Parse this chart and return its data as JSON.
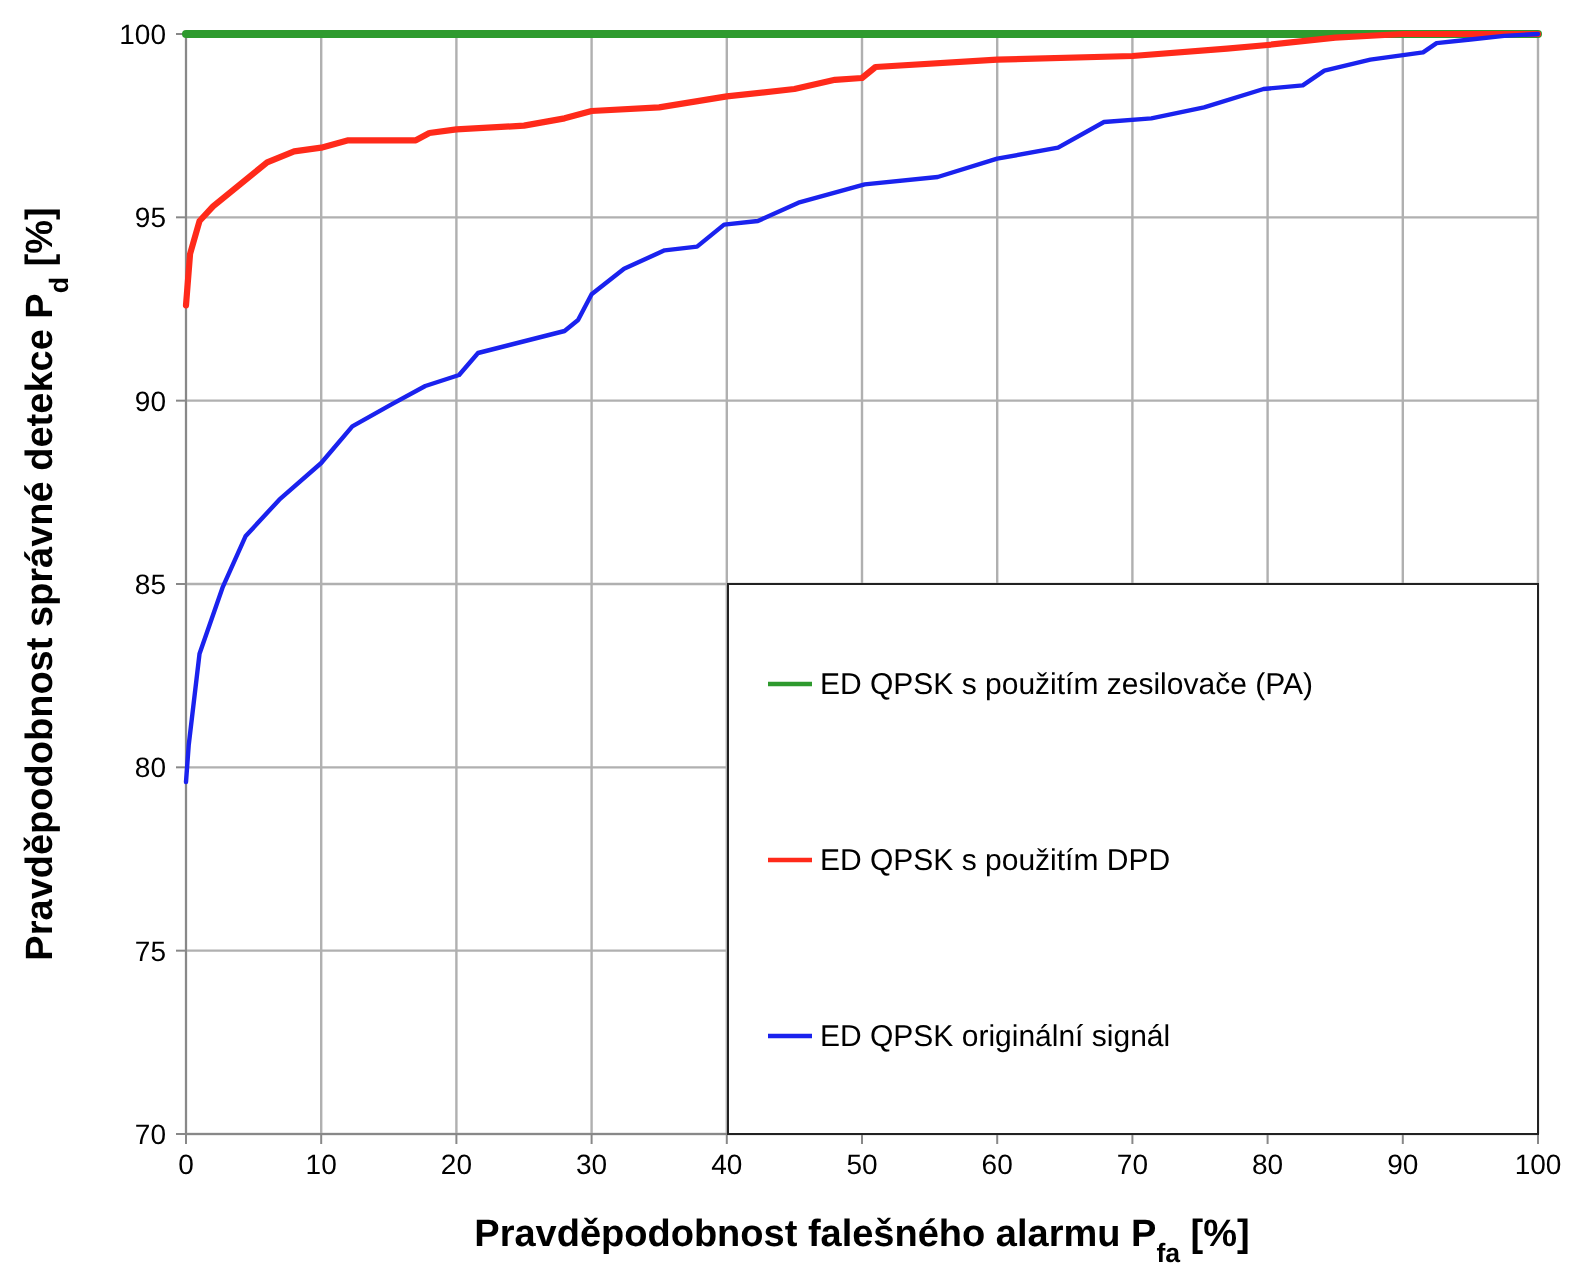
{
  "chart_data": {
    "type": "line",
    "xlabel": "Pravděpodobnost falešného alarmu P$_{fa}$ [%]",
    "ylabel": "Pravděpodobnost správné detekce P$_{d}$ [%]",
    "xlim": [
      0,
      100
    ],
    "xticks": [
      0,
      10,
      20,
      30,
      40,
      50,
      60,
      70,
      80,
      90,
      100
    ],
    "ylim": [
      70,
      100
    ],
    "yticks": [
      70,
      75,
      80,
      85,
      90,
      95,
      100
    ],
    "grid": true,
    "legend": "bottom right",
    "marker": "none",
    "line_style": "solid",
    "series": [
      {
        "name": "ED QPSK s použitím zesilovače (PA)",
        "color": "#2e9a2e",
        "x": [
          0,
          100
        ],
        "values": [
          100,
          100
        ]
      },
      {
        "name": "ED QPSK s použitím DPD",
        "color": "#ff2a1a",
        "x": [
          0,
          0.3,
          1,
          2,
          3,
          4,
          5,
          6,
          8,
          10,
          12,
          17,
          18,
          20,
          25,
          28,
          30,
          35,
          40,
          45,
          48,
          50,
          51,
          60,
          70,
          77,
          80,
          85,
          90,
          100
        ],
        "values": [
          92.6,
          94.0,
          94.9,
          95.3,
          95.6,
          95.9,
          96.2,
          96.5,
          96.8,
          96.9,
          97.1,
          97.1,
          97.3,
          97.4,
          97.5,
          97.7,
          97.9,
          98.0,
          98.3,
          98.5,
          98.75,
          98.8,
          99.1,
          99.3,
          99.4,
          99.6,
          99.7,
          99.9,
          100,
          100
        ]
      },
      {
        "name": "ED QPSK originální signál",
        "color": "#1a22ee",
        "x": [
          0,
          0.2,
          1,
          2.7,
          4.4,
          6.9,
          10,
          12.3,
          15.2,
          17.7,
          20.2,
          21.6,
          28,
          29,
          30,
          32.4,
          35.4,
          37.8,
          39.8,
          42.3,
          45.3,
          50.2,
          55.6,
          60,
          64.5,
          67.9,
          71.4,
          75.3,
          79.7,
          82.6,
          84.2,
          87.6,
          91.5,
          92.5,
          95,
          97.5,
          100
        ],
        "values": [
          79.6,
          80.6,
          83.1,
          84.9,
          86.3,
          87.3,
          88.3,
          89.3,
          89.9,
          90.4,
          90.7,
          91.3,
          91.9,
          92.2,
          92.9,
          93.6,
          94.1,
          94.2,
          94.8,
          94.9,
          95.4,
          95.9,
          96.1,
          96.6,
          96.9,
          97.6,
          97.7,
          98.0,
          98.5,
          98.6,
          99.0,
          99.3,
          99.5,
          99.75,
          99.85,
          99.95,
          100
        ]
      }
    ]
  }
}
